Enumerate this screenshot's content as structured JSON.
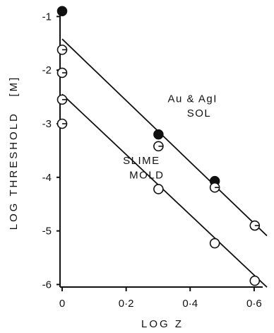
{
  "chart_data": {
    "type": "scatter",
    "xlabel": "LOG Z",
    "ylabel": "LOG THRESHOLD   [M]",
    "xlim": [
      0,
      0.64
    ],
    "ylim": [
      -6.1,
      -0.85
    ],
    "x_ticks": [
      0,
      0.2,
      0.4,
      0.6
    ],
    "x_tick_labels": [
      "0",
      "0·2",
      "0·4",
      "0·6"
    ],
    "y_ticks": [
      -1,
      -2,
      -3,
      -4,
      -5,
      -6
    ],
    "y_tick_labels": [
      "-1",
      "-2",
      "-3",
      "-4",
      "-5",
      "-6"
    ],
    "annotations": [
      {
        "text": "Au & AgI",
        "x": 0.33,
        "y": -2.6
      },
      {
        "text": "SOL",
        "x": 0.39,
        "y": -2.87
      },
      {
        "text": "SLIME",
        "x": 0.19,
        "y": -3.75
      },
      {
        "text": "MOLD",
        "x": 0.21,
        "y": -4.02
      }
    ],
    "series": [
      {
        "marker": "filled-circle",
        "points": [
          [
            0.0,
            -0.9
          ],
          [
            0.301,
            -3.2
          ],
          [
            0.477,
            -4.07
          ]
        ]
      },
      {
        "marker": "circle-half-line",
        "points": [
          [
            0.0,
            -1.62
          ],
          [
            0.0,
            -2.05
          ],
          [
            0.0,
            -2.55
          ],
          [
            0.0,
            -3.0
          ],
          [
            0.301,
            -3.42
          ],
          [
            0.477,
            -4.19
          ],
          [
            0.602,
            -4.9
          ]
        ]
      },
      {
        "marker": "open-circle",
        "points": [
          [
            0.301,
            -4.22
          ],
          [
            0.477,
            -5.23
          ],
          [
            0.602,
            -5.93
          ]
        ]
      }
    ],
    "lines": [
      {
        "x1": 0.0,
        "y1": -1.42,
        "x2": 0.64,
        "y2": -5.09
      },
      {
        "x1": 0.0,
        "y1": -2.45,
        "x2": 0.64,
        "y2": -6.05
      }
    ]
  }
}
